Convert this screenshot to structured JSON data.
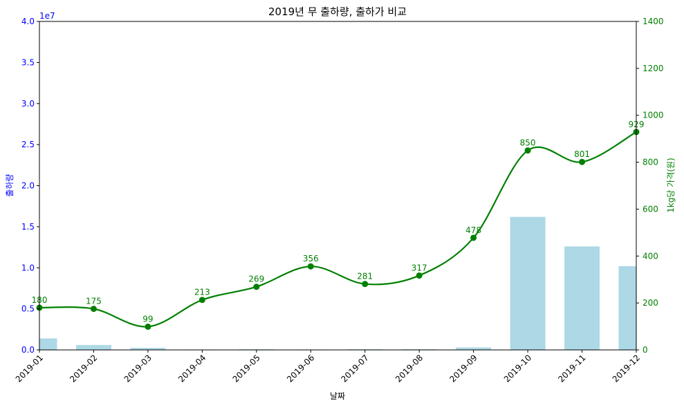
{
  "chart_data": {
    "type": "bar+line",
    "title": "2019년 무 출하량, 출하가 비교",
    "xlabel": "날짜",
    "ylabel_left": "출하량",
    "ylabel_right": "1kg당 가격(원)",
    "left_axis_offset_label": "1e7",
    "categories": [
      "2019-01",
      "2019-02",
      "2019-03",
      "2019-04",
      "2019-05",
      "2019-06",
      "2019-07",
      "2019-08",
      "2019-09",
      "2019-10",
      "2019-11",
      "2019-12"
    ],
    "left_ylim": [
      0,
      40000000
    ],
    "left_ticks": [
      0,
      5000000,
      10000000,
      15000000,
      20000000,
      25000000,
      30000000,
      35000000,
      40000000
    ],
    "left_tick_labels": [
      "0.0",
      "0.5",
      "1.0",
      "1.5",
      "2.0",
      "2.5",
      "3.0",
      "3.5",
      "4.0"
    ],
    "right_ylim": [
      0,
      1400
    ],
    "right_ticks": [
      0,
      200,
      400,
      600,
      800,
      1000,
      1200,
      1400
    ],
    "right_tick_labels": [
      "0",
      "200",
      "400",
      "600",
      "800",
      "1000",
      "1200",
      "1400"
    ],
    "series": [
      {
        "name": "출하량",
        "type": "bar",
        "axis": "left",
        "color": "#add8e6",
        "values": [
          1400000,
          600000,
          250000,
          50000,
          80000,
          50000,
          80000,
          80000,
          300000,
          16200000,
          12600000,
          10200000
        ]
      },
      {
        "name": "1kg당 가격(원)",
        "type": "line",
        "axis": "right",
        "color": "#008000",
        "smooth": true,
        "values": [
          180,
          175,
          99,
          213,
          269,
          356,
          281,
          317,
          478,
          850,
          801,
          929
        ],
        "data_labels": [
          "180",
          "175",
          "99",
          "213",
          "269",
          "356",
          "281",
          "317",
          "478",
          "850",
          "801",
          "929"
        ]
      }
    ],
    "left_axis_color": "#0000ff",
    "right_axis_color": "#008000",
    "grid": false,
    "legend": "none"
  }
}
